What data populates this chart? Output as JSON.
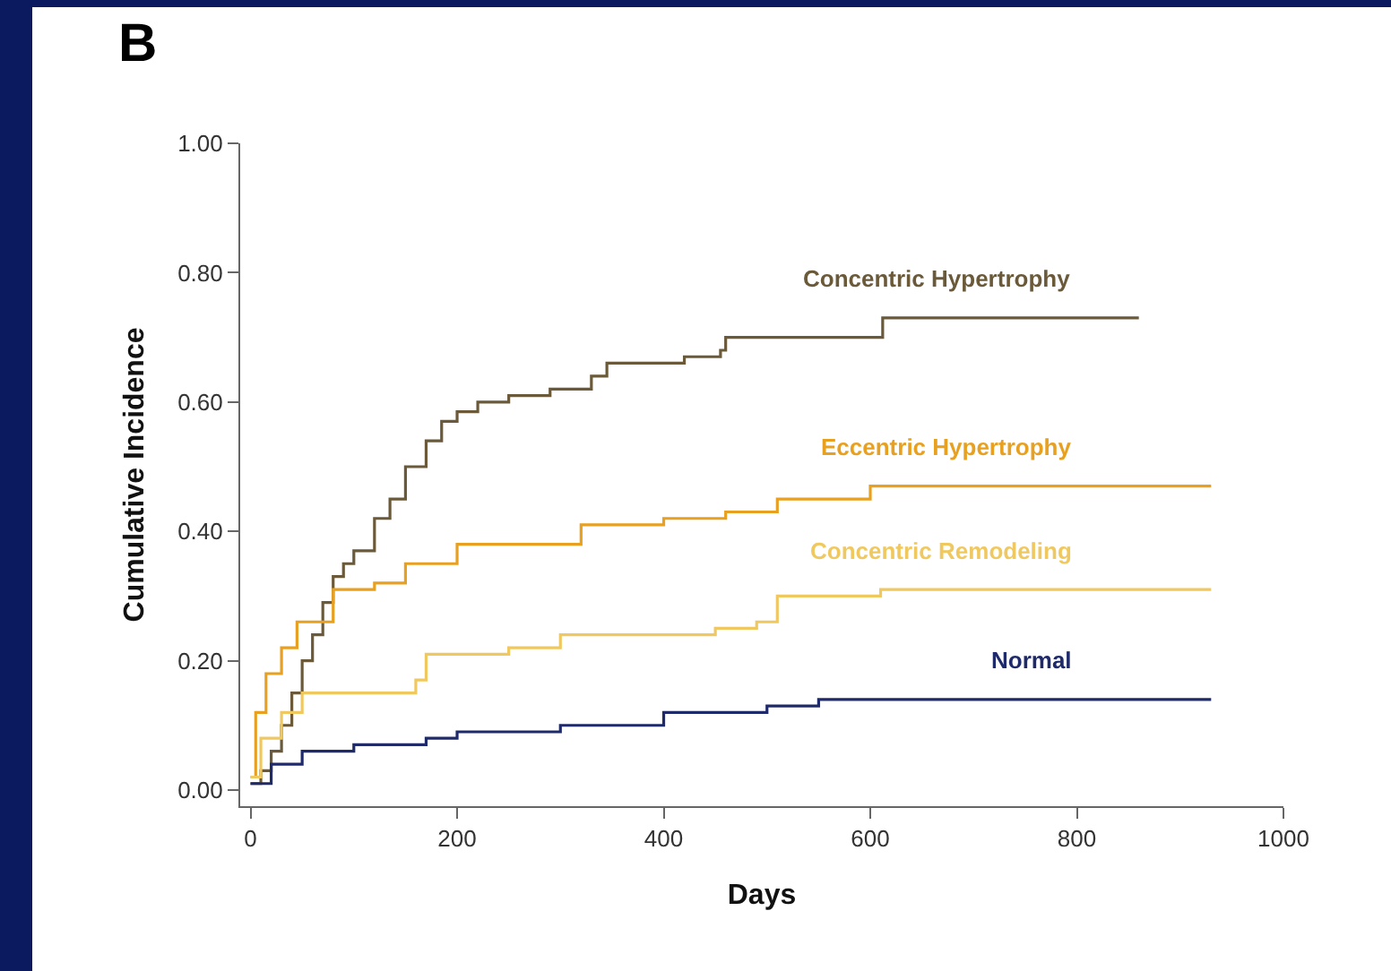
{
  "chart_data": {
    "type": "step",
    "xlabel": "Days",
    "ylabel": "Cumulative Incidence",
    "annotations": [
      "B"
    ],
    "xlim": [
      -10,
      1000
    ],
    "xticks": [
      0,
      200,
      400,
      600,
      800,
      1000
    ],
    "ylim": [
      -0.025,
      1.0
    ],
    "yticks": [
      {
        "value": 0,
        "label": "0.00"
      },
      {
        "value": 0.2,
        "label": "0.20"
      },
      {
        "value": 0.4,
        "label": "0.40"
      },
      {
        "value": 0.6,
        "label": "0.60"
      },
      {
        "value": 0.8,
        "label": "0.80"
      },
      {
        "value": 1.0,
        "label": "1.00"
      }
    ],
    "grid": false,
    "legend": false,
    "marker": "none",
    "line_style": "solid",
    "series": [
      {
        "name": "Concentric Hypertrophy",
        "color": "#6b5a3a",
        "x": [
          0,
          10,
          20,
          30,
          40,
          50,
          60,
          70,
          80,
          90,
          100,
          120,
          135,
          150,
          170,
          185,
          200,
          220,
          250,
          290,
          330,
          345,
          390,
          420,
          455,
          460,
          610,
          612,
          860
        ],
        "values": [
          0.01,
          0.03,
          0.06,
          0.1,
          0.15,
          0.2,
          0.24,
          0.29,
          0.33,
          0.35,
          0.37,
          0.42,
          0.45,
          0.5,
          0.54,
          0.57,
          0.585,
          0.6,
          0.61,
          0.62,
          0.64,
          0.66,
          0.66,
          0.67,
          0.68,
          0.7,
          0.7,
          0.73,
          0.73
        ]
      },
      {
        "name": "Eccentric Hypertrophy",
        "color": "#e8a020",
        "x": [
          0,
          5,
          15,
          30,
          45,
          60,
          80,
          120,
          150,
          200,
          300,
          320,
          400,
          460,
          510,
          600,
          930
        ],
        "values": [
          0.02,
          0.12,
          0.18,
          0.22,
          0.26,
          0.26,
          0.31,
          0.32,
          0.35,
          0.38,
          0.38,
          0.41,
          0.42,
          0.43,
          0.45,
          0.47,
          0.47
        ]
      },
      {
        "name": "Concentric Remodeling",
        "color": "#f0c860",
        "x": [
          0,
          10,
          30,
          50,
          100,
          160,
          170,
          250,
          300,
          450,
          490,
          510,
          610,
          930
        ],
        "values": [
          0.02,
          0.08,
          0.12,
          0.15,
          0.15,
          0.17,
          0.21,
          0.22,
          0.24,
          0.25,
          0.26,
          0.3,
          0.31,
          0.31
        ]
      },
      {
        "name": "Normal",
        "color": "#1f2a6b",
        "x": [
          0,
          20,
          50,
          100,
          170,
          200,
          300,
          400,
          500,
          550,
          930
        ],
        "values": [
          0.01,
          0.04,
          0.06,
          0.07,
          0.08,
          0.09,
          0.1,
          0.12,
          0.13,
          0.14,
          0.14
        ]
      }
    ]
  }
}
